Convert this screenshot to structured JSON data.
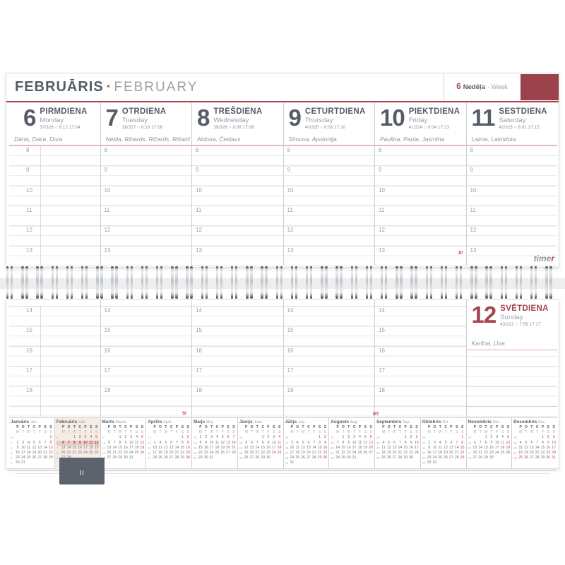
{
  "page": {
    "title_lv": "FEBRUĀRIS",
    "title_sep": "·",
    "title_en": "FEBRUARY"
  },
  "week": {
    "number": "6",
    "label_lv": "Nedēļa",
    "sep": "·",
    "label_en": "Week"
  },
  "brand": {
    "main": "time",
    "accent": "r"
  },
  "tab_label": "II",
  "annotations": {
    "jp": "JP",
    "si": "SI",
    "mt": "MT"
  },
  "sun_icon": "○",
  "hours_top": [
    "8",
    "9",
    "10",
    "11",
    "12",
    "13"
  ],
  "hours_bottom": [
    "14",
    "15",
    "16",
    "17",
    "18"
  ],
  "colors": {
    "accent_red": "#a4454f",
    "tab_red": "#9c424c",
    "dark_gray": "#565c66",
    "light_gray": "#9aa1a9",
    "tab_gray": "#5c636d",
    "highlight": "#e9cec6"
  },
  "days": [
    {
      "num": "6",
      "lv": "PIRMDIENA",
      "en": "Monday",
      "stat": "37/328",
      "sun": "8:12 17:04",
      "names": "Dārta, Dace, Dora",
      "red": false
    },
    {
      "num": "7",
      "lv": "OTRDIENA",
      "en": "Tuesday",
      "stat": "38/327",
      "sun": "8:10 17:06",
      "names": "Nelda, Rihards, Ričards, Rišards",
      "red": false
    },
    {
      "num": "8",
      "lv": "TREŠDIENA",
      "en": "Wednesday",
      "stat": "39/326",
      "sun": "8:08 17:08",
      "names": "Aldona, Česlavs",
      "red": false
    },
    {
      "num": "9",
      "lv": "CETURTDIENA",
      "en": "Thursday",
      "stat": "40/325",
      "sun": "8:06 17:10",
      "names": "Simona, Apolonija",
      "red": false
    },
    {
      "num": "10",
      "lv": "PIEKTDIENA",
      "en": "Friday",
      "stat": "41/324",
      "sun": "8:04 17:13",
      "names": "Paulīna, Paula, Jasmīna",
      "red": false
    },
    {
      "num": "11",
      "lv": "SESTDIENA",
      "en": "Saturday",
      "stat": "42/323",
      "sun": "8:01 17:15",
      "names": "Laima, Laimdota",
      "red": false
    },
    {
      "num": "12",
      "lv": "SVĒTDIENA",
      "en": "Sunday",
      "stat": "43/322",
      "sun": "7:59 17:17",
      "names": "Karlīna, Līna",
      "red": true
    }
  ],
  "mini_dow_lv": [
    "P",
    "O",
    "T",
    "C",
    "P",
    "S",
    "S"
  ],
  "mini_dow_en": [
    "M",
    "T",
    "W",
    "T",
    "F",
    "S",
    "S"
  ],
  "mini_months": [
    {
      "lv": "Janvāris",
      "en": "Jan",
      "first_dow": 6,
      "days": 31,
      "weeks": [
        52,
        1,
        2,
        3,
        4,
        5
      ],
      "red": [
        1,
        8,
        15,
        22,
        29
      ]
    },
    {
      "lv": "Februāris",
      "en": "Feb",
      "first_dow": 2,
      "days": 28,
      "weeks": [
        5,
        6,
        7,
        8,
        9
      ],
      "red": [
        5,
        12,
        19,
        26
      ],
      "bg": true,
      "hl": [
        6,
        12
      ]
    },
    {
      "lv": "Marts",
      "en": "March",
      "first_dow": 2,
      "days": 31,
      "weeks": [
        9,
        10,
        11,
        12,
        13
      ],
      "red": [
        5,
        12,
        19,
        26
      ]
    },
    {
      "lv": "Aprīlis",
      "en": "April",
      "first_dow": 5,
      "days": 30,
      "weeks": [
        13,
        14,
        15,
        16,
        17
      ],
      "red": [
        2,
        7,
        9,
        10,
        16,
        23,
        30
      ]
    },
    {
      "lv": "Maijs",
      "en": "May",
      "first_dow": 0,
      "days": 31,
      "weeks": [
        18,
        19,
        20,
        21,
        22
      ],
      "red": [
        1,
        4,
        7,
        14,
        21,
        28
      ]
    },
    {
      "lv": "Jūnijs",
      "en": "June",
      "first_dow": 3,
      "days": 30,
      "weeks": [
        22,
        23,
        24,
        25,
        26
      ],
      "red": [
        4,
        11,
        18,
        23,
        24,
        25
      ]
    },
    {
      "lv": "Jūlijs",
      "en": "July",
      "first_dow": 5,
      "days": 31,
      "weeks": [
        26,
        27,
        28,
        29,
        30,
        31
      ],
      "red": [
        2,
        9,
        16,
        23,
        30
      ]
    },
    {
      "lv": "Augusts",
      "en": "Aug",
      "first_dow": 1,
      "days": 31,
      "weeks": [
        31,
        32,
        33,
        34,
        35
      ],
      "red": [
        6,
        13,
        20,
        27
      ]
    },
    {
      "lv": "Septembris",
      "en": "Sep",
      "first_dow": 4,
      "days": 30,
      "weeks": [
        35,
        36,
        37,
        38,
        39
      ],
      "red": [
        3,
        10,
        17,
        24
      ]
    },
    {
      "lv": "Oktobris",
      "en": "Oct",
      "first_dow": 6,
      "days": 31,
      "weeks": [
        39,
        40,
        41,
        42,
        43,
        44
      ],
      "red": [
        1,
        8,
        15,
        22,
        29
      ]
    },
    {
      "lv": "Novembris",
      "en": "Nov",
      "first_dow": 2,
      "days": 30,
      "weeks": [
        44,
        45,
        46,
        47,
        48
      ],
      "red": [
        5,
        12,
        18,
        19,
        26
      ]
    },
    {
      "lv": "Decembris",
      "en": "Dec",
      "first_dow": 4,
      "days": 31,
      "weeks": [
        48,
        49,
        50,
        51,
        52
      ],
      "red": [
        3,
        10,
        17,
        24,
        25,
        26,
        31
      ]
    }
  ]
}
